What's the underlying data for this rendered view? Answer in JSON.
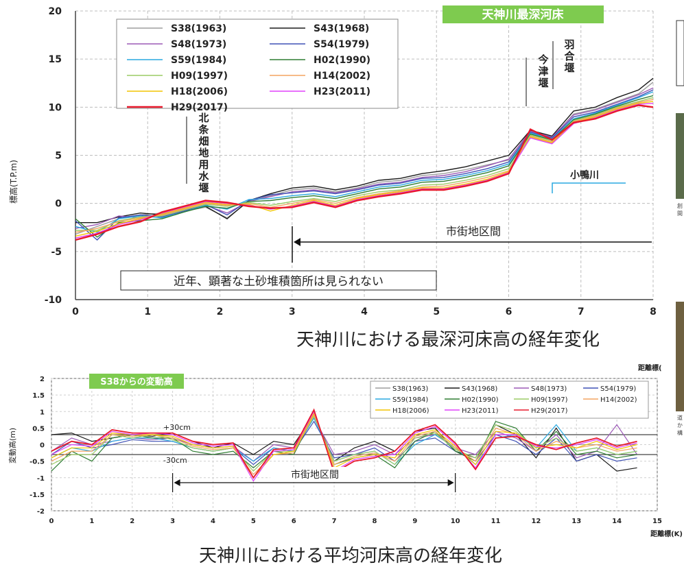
{
  "chart_data": [
    {
      "type": "line",
      "title": "天神川最深河床",
      "ylabel": "標高(T.P.m)",
      "xlabel": "",
      "xlim": [
        0,
        8
      ],
      "ylim": [
        -10,
        20
      ],
      "x_ticks": [
        "0",
        "1",
        "2",
        "3",
        "4",
        "5",
        "6",
        "7",
        "8"
      ],
      "y_ticks": [
        "-10",
        "-5",
        "0",
        "5",
        "10",
        "15",
        "20"
      ],
      "legend_position": "top-left",
      "x": [
        0,
        0.3,
        0.6,
        0.9,
        1.2,
        1.5,
        1.8,
        2.1,
        2.4,
        2.7,
        3.0,
        3.3,
        3.6,
        3.9,
        4.2,
        4.5,
        4.8,
        5.1,
        5.4,
        5.7,
        6.0,
        6.3,
        6.6,
        6.9,
        7.2,
        7.5,
        7.8,
        8.0
      ],
      "series": [
        {
          "name": "S38(1963)",
          "color": "#9e9e9e",
          "values": [
            -3.2,
            -2.4,
            -1.6,
            -1.2,
            -1.0,
            -0.8,
            -0.4,
            -1.5,
            0.2,
            0.8,
            1.4,
            1.6,
            1.2,
            1.6,
            2.2,
            2.4,
            2.9,
            3.1,
            3.5,
            4.0,
            4.5,
            7.6,
            6.8,
            9.3,
            9.8,
            10.6,
            11.4,
            12.6
          ]
        },
        {
          "name": "S43(1968)",
          "color": "#1a1a1a",
          "values": [
            -2.0,
            -2.0,
            -1.4,
            -1.0,
            -1.2,
            -0.6,
            -0.3,
            -1.6,
            0.3,
            1.0,
            1.6,
            1.8,
            1.4,
            1.8,
            2.4,
            2.6,
            3.1,
            3.4,
            3.8,
            4.4,
            5.0,
            7.6,
            7.0,
            9.6,
            10.0,
            11.0,
            11.8,
            13.0
          ]
        },
        {
          "name": "S48(1973)",
          "color": "#9b59b6",
          "values": [
            -2.6,
            -2.2,
            -1.3,
            -1.5,
            -1.1,
            -0.6,
            -0.2,
            -1.0,
            0.2,
            0.7,
            1.2,
            1.4,
            1.1,
            1.5,
            2.0,
            2.2,
            2.7,
            2.9,
            3.3,
            3.9,
            4.6,
            7.5,
            6.9,
            9.2,
            9.7,
            10.5,
            11.3,
            12.0
          ]
        },
        {
          "name": "S54(1979)",
          "color": "#3f51b5",
          "values": [
            -1.8,
            -3.8,
            -1.5,
            -1.2,
            -1.4,
            -0.8,
            -0.1,
            -1.2,
            0.3,
            0.9,
            1.1,
            1.3,
            1.0,
            1.4,
            1.9,
            2.1,
            2.6,
            2.7,
            3.1,
            3.6,
            4.3,
            7.4,
            6.8,
            9.0,
            9.5,
            10.3,
            11.1,
            11.8
          ]
        },
        {
          "name": "S59(1984)",
          "color": "#29a8e0",
          "values": [
            -2.4,
            -3.0,
            -1.6,
            -1.3,
            -1.5,
            -0.9,
            -0.2,
            -0.6,
            0.4,
            0.5,
            0.8,
            1.0,
            0.7,
            1.2,
            1.7,
            1.9,
            2.4,
            2.5,
            2.9,
            3.4,
            4.1,
            7.3,
            6.7,
            8.8,
            9.4,
            10.2,
            11.0,
            11.6
          ]
        },
        {
          "name": "H02(1990)",
          "color": "#2e7d32",
          "values": [
            -1.6,
            -3.5,
            -2.0,
            -1.8,
            -1.6,
            -0.9,
            -0.3,
            -0.5,
            0.2,
            0.3,
            0.6,
            0.8,
            0.5,
            1.0,
            1.5,
            1.7,
            2.2,
            2.3,
            2.7,
            3.2,
            3.9,
            7.2,
            6.6,
            8.7,
            9.3,
            10.1,
            10.8,
            11.2
          ]
        },
        {
          "name": "H09(1997)",
          "color": "#9ccc65",
          "values": [
            -2.8,
            -2.8,
            -1.8,
            -1.4,
            -1.3,
            -0.7,
            -0.1,
            -0.3,
            0.1,
            -0.2,
            0.2,
            0.5,
            0.2,
            0.8,
            1.2,
            1.4,
            1.9,
            2.0,
            2.4,
            2.9,
            3.6,
            7.1,
            6.5,
            8.6,
            9.2,
            10.0,
            10.6,
            11.0
          ]
        },
        {
          "name": "H14(2002)",
          "color": "#f4a460",
          "values": [
            -3.0,
            -2.6,
            -1.9,
            -1.5,
            -1.2,
            -0.6,
            0.0,
            -0.2,
            0.0,
            -0.4,
            0.0,
            0.4,
            0.0,
            0.6,
            1.0,
            1.3,
            1.7,
            1.8,
            2.2,
            2.7,
            3.4,
            7.0,
            6.4,
            8.5,
            9.1,
            9.9,
            10.5,
            10.8
          ]
        },
        {
          "name": "H18(2006)",
          "color": "#f2c400",
          "values": [
            -3.4,
            -2.9,
            -2.1,
            -1.6,
            -1.1,
            -0.5,
            0.1,
            -0.1,
            -0.1,
            -0.8,
            -0.2,
            0.3,
            -0.2,
            0.5,
            0.9,
            1.2,
            1.6,
            1.6,
            2.0,
            2.5,
            3.3,
            6.9,
            6.3,
            8.4,
            9.0,
            9.8,
            10.4,
            10.6
          ]
        },
        {
          "name": "H23(2011)",
          "color": "#e040fb",
          "values": [
            -3.6,
            -3.1,
            -2.2,
            -1.7,
            -1.0,
            -0.4,
            0.2,
            0.0,
            -0.2,
            -0.6,
            -0.3,
            0.2,
            -0.3,
            0.4,
            0.8,
            1.1,
            1.5,
            1.5,
            1.9,
            2.4,
            3.2,
            6.8,
            6.2,
            8.3,
            8.9,
            9.7,
            10.3,
            10.4
          ]
        },
        {
          "name": "H29(2017)",
          "color": "#e8192c",
          "values": [
            -3.8,
            -3.2,
            -2.4,
            -1.9,
            -0.9,
            -0.3,
            0.3,
            0.1,
            -0.3,
            -0.5,
            -0.4,
            0.1,
            -0.4,
            0.3,
            0.7,
            1.0,
            1.4,
            1.4,
            1.8,
            2.3,
            3.1,
            7.7,
            6.6,
            8.4,
            8.8,
            9.6,
            10.2,
            10.0
          ]
        }
      ],
      "annotations": {
        "weir_hojo": "北条畑地用水堰",
        "weir_imazu": "今津堰",
        "weir_hago": "羽合堰",
        "tributary": "小鴨川",
        "urban_section": "市街地区間",
        "note": "近年、顕著な土砂堆積箇所は見られない"
      }
    },
    {
      "type": "line",
      "title": "S38からの変動高",
      "ylabel": "変動高(m)",
      "xlabel": "距離標(K)",
      "xlim": [
        0,
        15
      ],
      "ylim": [
        -2,
        2
      ],
      "x_ticks": [
        "0",
        "1",
        "2",
        "3",
        "4",
        "5",
        "6",
        "7",
        "8",
        "9",
        "10",
        "11",
        "12",
        "13",
        "14",
        "15"
      ],
      "y_ticks": [
        "-2",
        "-1.5",
        "-1",
        "-0.5",
        "0",
        "0.5",
        "1",
        "1.5",
        "2"
      ],
      "legend_position": "top-right",
      "x": [
        0,
        0.5,
        1,
        1.5,
        2,
        2.5,
        3,
        3.5,
        4,
        4.5,
        5,
        5.5,
        6,
        6.5,
        7,
        7.5,
        8,
        8.5,
        9,
        9.5,
        10,
        10.5,
        11,
        11.5,
        12,
        12.5,
        13,
        13.5,
        14,
        14.5
      ],
      "series": [
        {
          "name": "S38(1963)",
          "color": "#9e9e9e",
          "values": [
            0,
            0,
            0,
            0,
            0,
            0,
            0,
            0,
            0,
            0,
            0,
            0,
            0,
            0,
            0,
            0,
            0,
            0,
            0,
            0,
            0,
            0,
            0,
            0,
            0,
            0,
            0,
            0,
            0,
            0
          ]
        },
        {
          "name": "S43(1968)",
          "color": "#1a1a1a",
          "values": [
            0.3,
            0.35,
            0.1,
            0.2,
            0.3,
            0.25,
            0.35,
            0.1,
            -0.1,
            0.05,
            -0.3,
            0.1,
            0.0,
            0.9,
            -0.5,
            -0.1,
            0.1,
            -0.2,
            0.4,
            0.5,
            -0.2,
            -0.4,
            0.6,
            0.3,
            -0.4,
            0.5,
            -0.5,
            -0.3,
            -0.8,
            -0.7
          ]
        },
        {
          "name": "S48(1973)",
          "color": "#9b59b6",
          "values": [
            -0.2,
            0.2,
            0.0,
            0.1,
            0.2,
            0.15,
            0.2,
            0.0,
            -0.1,
            -0.05,
            -0.5,
            0.0,
            -0.1,
            0.8,
            -0.3,
            -0.2,
            0.0,
            -0.3,
            0.2,
            0.3,
            -0.1,
            -0.3,
            0.4,
            0.2,
            -0.2,
            0.3,
            -0.4,
            -0.2,
            0.6,
            -0.3
          ]
        },
        {
          "name": "S54(1979)",
          "color": "#3f51b5",
          "values": [
            -0.3,
            0.1,
            -0.1,
            0.0,
            0.15,
            0.1,
            0.1,
            -0.1,
            -0.2,
            -0.1,
            -0.6,
            -0.1,
            -0.2,
            0.7,
            -0.4,
            -0.3,
            -0.1,
            -0.5,
            0.1,
            0.2,
            -0.2,
            -0.5,
            0.3,
            0.1,
            -0.3,
            0.2,
            -0.5,
            -0.3,
            -0.5,
            -0.4
          ]
        },
        {
          "name": "S59(1984)",
          "color": "#29a8e0",
          "values": [
            -0.4,
            -0.1,
            -0.2,
            0.1,
            0.2,
            0.2,
            0.1,
            -0.1,
            -0.2,
            -0.1,
            -0.5,
            -0.1,
            -0.2,
            0.8,
            -0.5,
            -0.3,
            -0.2,
            -0.6,
            0.0,
            0.3,
            -0.1,
            -0.6,
            0.2,
            0.3,
            -0.1,
            0.6,
            -0.2,
            -0.1,
            -0.3,
            -0.2
          ]
        },
        {
          "name": "H02(1990)",
          "color": "#2e7d32",
          "values": [
            -0.8,
            -0.2,
            -0.5,
            0.2,
            0.3,
            0.2,
            0.2,
            -0.2,
            -0.3,
            -0.2,
            -0.7,
            -0.2,
            -0.3,
            0.9,
            -0.6,
            -0.4,
            -0.3,
            -0.7,
            0.1,
            0.4,
            -0.2,
            -0.5,
            0.7,
            0.5,
            -0.2,
            0.4,
            -0.3,
            -0.2,
            -0.4,
            -0.3
          ]
        },
        {
          "name": "H09(1997)",
          "color": "#9ccc65",
          "values": [
            -0.6,
            -0.3,
            -0.3,
            0.3,
            0.2,
            0.3,
            0.15,
            -0.1,
            -0.2,
            -0.1,
            -0.8,
            -0.2,
            -0.2,
            0.85,
            -0.5,
            -0.3,
            -0.2,
            -0.6,
            0.2,
            0.35,
            -0.15,
            -0.4,
            0.6,
            0.4,
            -0.1,
            0.2,
            -0.2,
            -0.1,
            -0.3,
            -0.2
          ]
        },
        {
          "name": "H14(2002)",
          "color": "#f4a460",
          "values": [
            -0.5,
            -0.2,
            -0.2,
            0.3,
            0.25,
            0.3,
            0.2,
            -0.05,
            -0.15,
            -0.1,
            -0.9,
            -0.3,
            -0.25,
            0.9,
            -0.6,
            -0.35,
            -0.25,
            -0.5,
            0.25,
            0.4,
            -0.1,
            -0.5,
            0.5,
            0.3,
            -0.2,
            0.1,
            -0.1,
            0.0,
            -0.2,
            -0.1
          ]
        },
        {
          "name": "H18(2006)",
          "color": "#f2c400",
          "values": [
            -0.4,
            -0.1,
            -0.1,
            0.35,
            0.3,
            0.3,
            0.25,
            0.0,
            -0.1,
            -0.05,
            -1.0,
            -0.3,
            -0.2,
            0.95,
            -0.7,
            -0.4,
            -0.3,
            -0.4,
            0.3,
            0.45,
            -0.05,
            -0.6,
            0.4,
            0.35,
            -0.1,
            0.0,
            -0.1,
            0.1,
            -0.15,
            0.0
          ]
        },
        {
          "name": "H23(2011)",
          "color": "#e040fb",
          "values": [
            -0.3,
            0.0,
            -0.05,
            0.4,
            0.3,
            0.35,
            0.3,
            0.05,
            -0.05,
            0.0,
            -1.1,
            -0.2,
            -0.15,
            1.0,
            -0.8,
            -0.45,
            -0.35,
            -0.3,
            0.35,
            0.55,
            0.0,
            -0.7,
            0.3,
            0.3,
            -0.05,
            -0.1,
            0.0,
            0.15,
            -0.1,
            0.05
          ]
        },
        {
          "name": "H29(2017)",
          "color": "#e8192c",
          "values": [
            -0.2,
            0.1,
            0.0,
            0.45,
            0.35,
            0.35,
            0.35,
            0.1,
            0.0,
            0.05,
            -1.0,
            -0.15,
            -0.1,
            1.05,
            -0.85,
            -0.5,
            -0.4,
            -0.2,
            0.4,
            0.6,
            0.05,
            -0.75,
            0.2,
            0.25,
            0.0,
            -0.15,
            0.05,
            0.2,
            -0.05,
            0.1
          ]
        }
      ],
      "reference_lines": [
        0.3,
        -0.3
      ],
      "annotations": {
        "plus30": "+30cm",
        "minus30": "-30cm",
        "urban_section": "市街地区間"
      }
    }
  ],
  "captions": {
    "chart1": "天神川における最深河床高の経年変化",
    "chart2": "天神川における平均河床高の経年変化"
  },
  "side_labels": {
    "distance_mark": "距離標(",
    "photo_caption_1": "創",
    "photo_caption_2": "間",
    "photo_caption_3": "道",
    "photo_caption_4": "か",
    "photo_caption_5": "構"
  }
}
